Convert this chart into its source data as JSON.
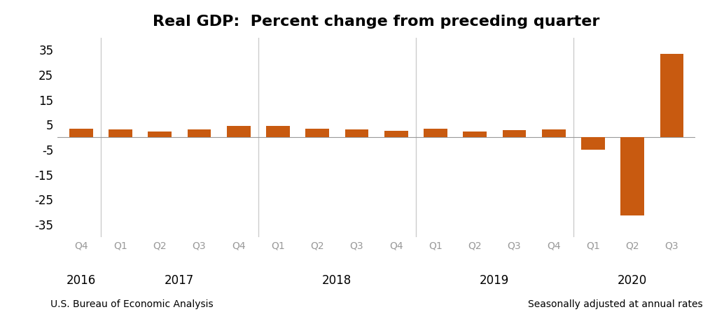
{
  "title": "Real GDP:  Percent change from preceding quarter",
  "bar_color": "#C85A10",
  "background_color": "#ffffff",
  "values": [
    3.5,
    3.2,
    2.3,
    3.2,
    4.5,
    4.5,
    3.5,
    3.1,
    2.6,
    3.5,
    2.3,
    3.0,
    3.2,
    -5.0,
    -31.4,
    33.4
  ],
  "quarter_labels": [
    "Q4",
    "Q1",
    "Q2",
    "Q3",
    "Q4",
    "Q1",
    "Q2",
    "Q3",
    "Q4",
    "Q1",
    "Q2",
    "Q3",
    "Q4",
    "Q1",
    "Q2",
    "Q3"
  ],
  "year_labels": [
    "2016",
    "2017",
    "2018",
    "2019",
    "2020"
  ],
  "ylim": [
    -40,
    40
  ],
  "yticks": [
    -35,
    -25,
    -15,
    -5,
    5,
    15,
    25,
    35
  ],
  "ytick_labels": [
    "-35",
    "-25",
    "-15",
    "-5",
    "5",
    "15",
    "25",
    "35"
  ],
  "footnote_left": "U.S. Bureau of Economic Analysis",
  "footnote_right": "Seasonally adjusted at annual rates",
  "axis_color": "#999999",
  "grid_color": "#cccccc",
  "quarter_label_color": "#999999",
  "year_label_color": "#000000",
  "ytick_color": "#000000",
  "bar_width": 0.6
}
